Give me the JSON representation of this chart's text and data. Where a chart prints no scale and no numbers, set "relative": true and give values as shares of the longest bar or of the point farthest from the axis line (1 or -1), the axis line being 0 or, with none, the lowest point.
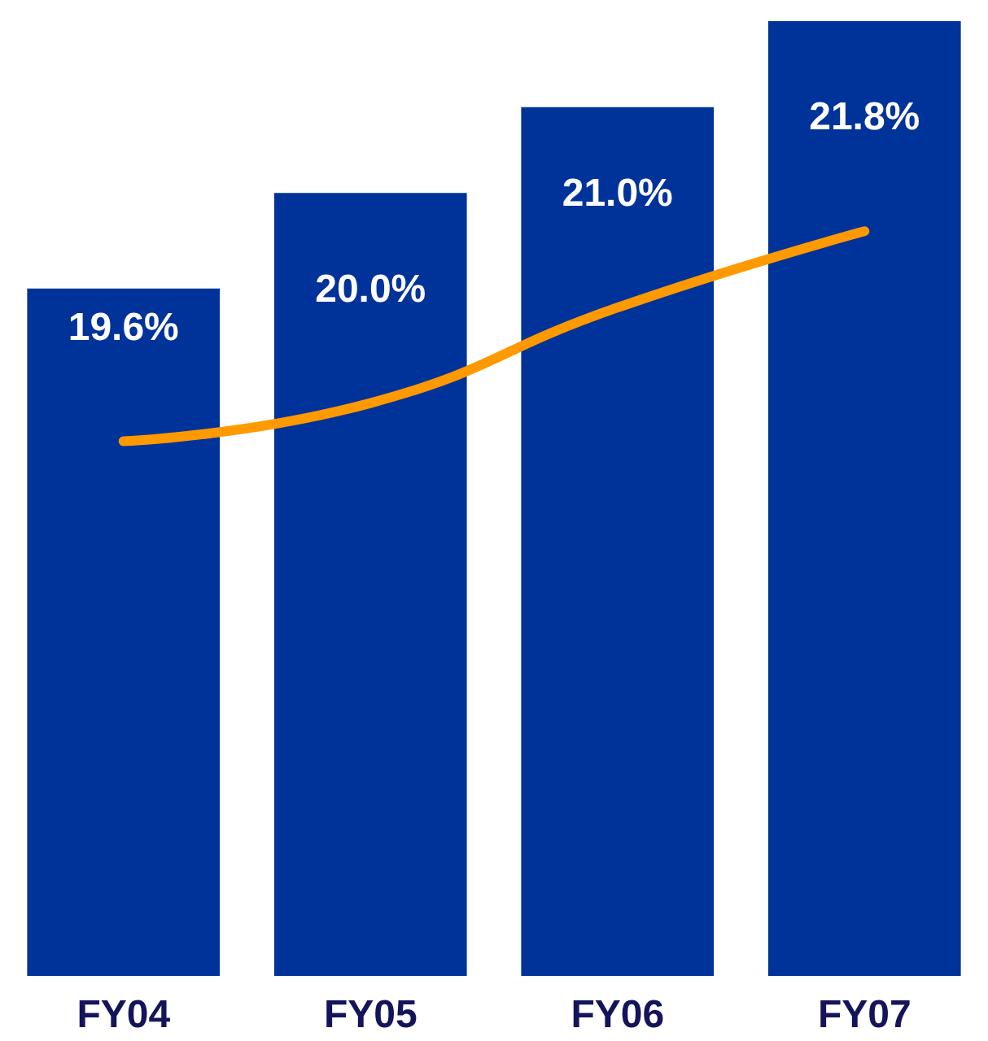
{
  "chart_data": [
    {
      "type": "bar",
      "relative": true,
      "categories": [
        "FY04",
        "FY05",
        "FY06",
        "FY07"
      ],
      "series": [
        {
          "color": "#003399",
          "values": [
            0.72,
            0.82,
            0.91,
            1
          ]
        }
      ],
      "legend": false
    },
    {
      "type": "line",
      "categories": [
        null,
        null,
        null,
        null
      ],
      "series": [
        {
          "color": "#ff9900",
          "values": [
            19.6,
            20.0,
            21.0,
            21.8
          ],
          "value_labels": [
            "19.6%",
            "20.0%",
            "21.0%",
            "21.8%"
          ]
        }
      ],
      "legend": false,
      "marker": "none",
      "line_style": "solid"
    }
  ]
}
